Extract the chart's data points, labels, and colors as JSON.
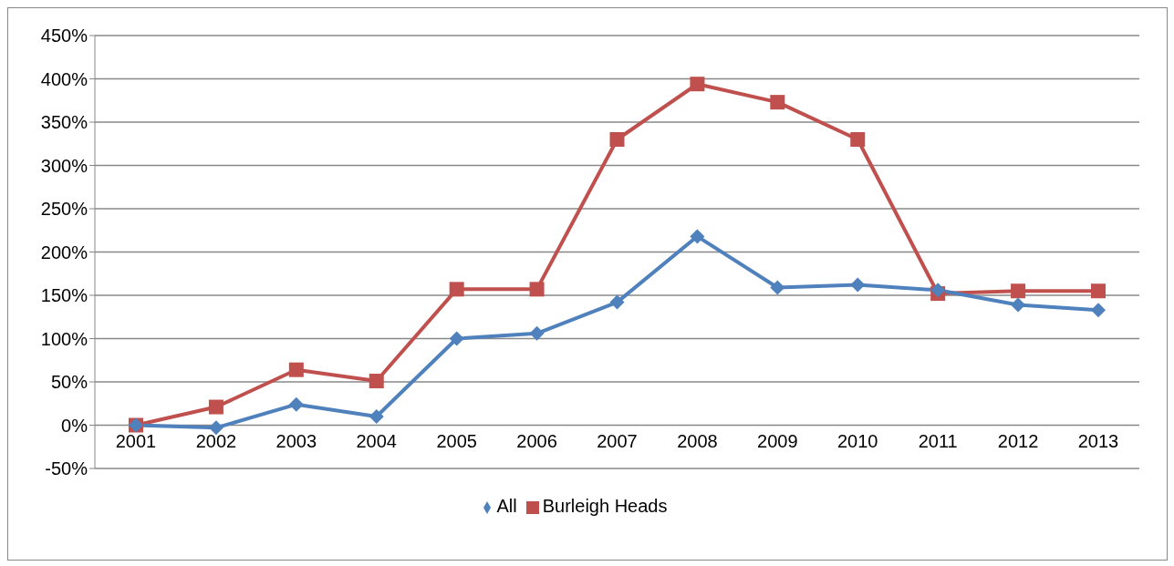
{
  "chart_data": {
    "type": "line",
    "categories": [
      "2001",
      "2002",
      "2003",
      "2004",
      "2005",
      "2006",
      "2007",
      "2008",
      "2009",
      "2010",
      "2011",
      "2012",
      "2013"
    ],
    "series": [
      {
        "name": "All",
        "color": "#4f81bd",
        "marker": "diamond",
        "values": [
          0,
          -3,
          24,
          10,
          100,
          106,
          142,
          218,
          159,
          162,
          156,
          139,
          133
        ]
      },
      {
        "name": "Burleigh Heads",
        "color": "#c0504d",
        "marker": "square",
        "values": [
          0,
          21,
          64,
          51,
          157,
          157,
          330,
          394,
          373,
          330,
          152,
          155,
          155
        ]
      }
    ],
    "ylim": [
      -50,
      450
    ],
    "yticks": [
      {
        "value": -50,
        "label": "-50%"
      },
      {
        "value": 0,
        "label": "0%"
      },
      {
        "value": 50,
        "label": "50%"
      },
      {
        "value": 100,
        "label": "100%"
      },
      {
        "value": 150,
        "label": "150%"
      },
      {
        "value": 200,
        "label": "200%"
      },
      {
        "value": 250,
        "label": "250%"
      },
      {
        "value": 300,
        "label": "300%"
      },
      {
        "value": 350,
        "label": "350%"
      },
      {
        "value": 400,
        "label": "400%"
      },
      {
        "value": 450,
        "label": "450%"
      }
    ],
    "grid": "y",
    "legend": "bottom"
  }
}
